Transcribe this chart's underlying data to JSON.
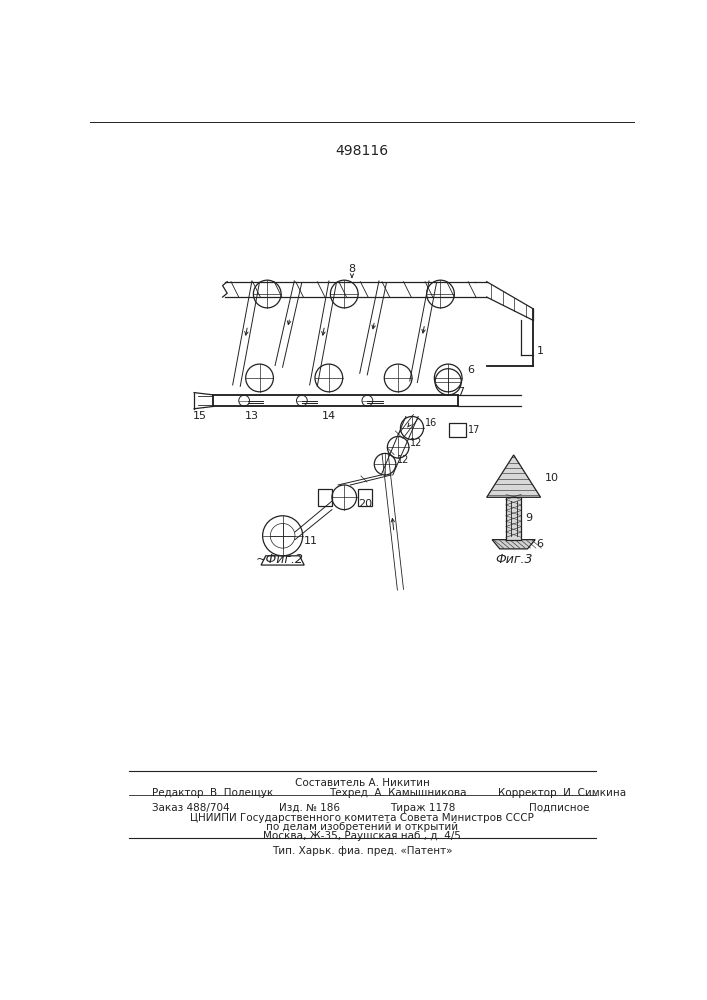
{
  "title": "498116",
  "fig2_label": "Фиг.2",
  "fig3_label": "Фиг.3",
  "background": "#ffffff",
  "line_color": "#222222",
  "footer_line1": "Составитель А. Никитин",
  "footer_line2_left": "Редактор  В. Полещук",
  "footer_line2_mid": "Техред  А. Камышникова",
  "footer_line2_right": "Корректор  И. Симкина",
  "footer_line3_left": "Заказ 488/704",
  "footer_line3_mid1": "Изд. № 186",
  "footer_line3_mid2": "Тираж 1178",
  "footer_line3_right": "Подписное",
  "footer_line4": "ЦНИИПИ Государственного комитета Совета Министров СССР",
  "footer_line5": "по делам изобретений и открытий",
  "footer_line6": "Москва, Ж-35, Раушская наб., д. 4/5",
  "footer_line7": "Тип. Харьк. фиа. пред. «Патент»"
}
